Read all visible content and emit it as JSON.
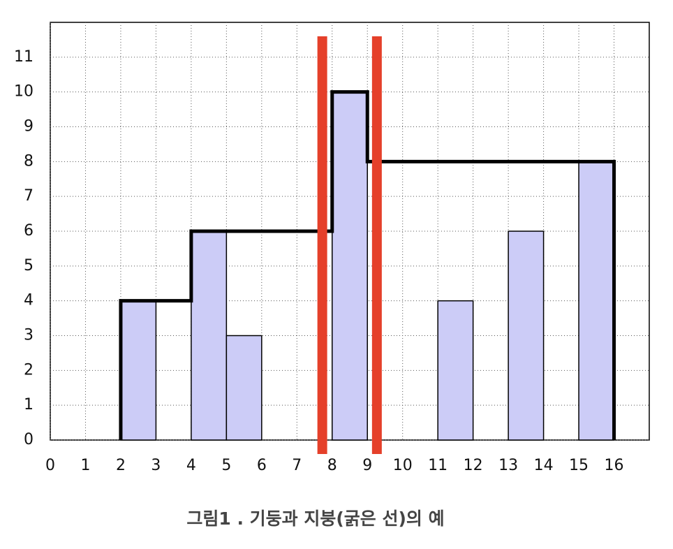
{
  "chart_data": {
    "type": "bar",
    "x": [
      2,
      4,
      5,
      8,
      11,
      13,
      15
    ],
    "values": [
      4,
      6,
      3,
      10,
      4,
      6,
      8
    ],
    "color": "#ccccf7",
    "xlim": [
      0,
      17
    ],
    "xticks": [
      0,
      1,
      2,
      3,
      4,
      5,
      6,
      7,
      8,
      9,
      10,
      11,
      12,
      13,
      14,
      15,
      16
    ],
    "ylim": [
      0,
      12
    ],
    "yticks": [
      0,
      1,
      2,
      3,
      4,
      5,
      6,
      7,
      8,
      9,
      10,
      11
    ],
    "grid": true,
    "roof": {
      "color": "#000000",
      "x": [
        2,
        2,
        4,
        4,
        8,
        8,
        9,
        9,
        16,
        16
      ],
      "y": [
        0,
        4,
        4,
        6,
        6,
        10,
        10,
        8,
        8,
        0
      ]
    },
    "vertical_lines": {
      "color": "#e5402a",
      "x": [
        7.72,
        9.27
      ]
    },
    "caption": "그림1 . 기둥과 지붕(굵은 선)의 예"
  }
}
